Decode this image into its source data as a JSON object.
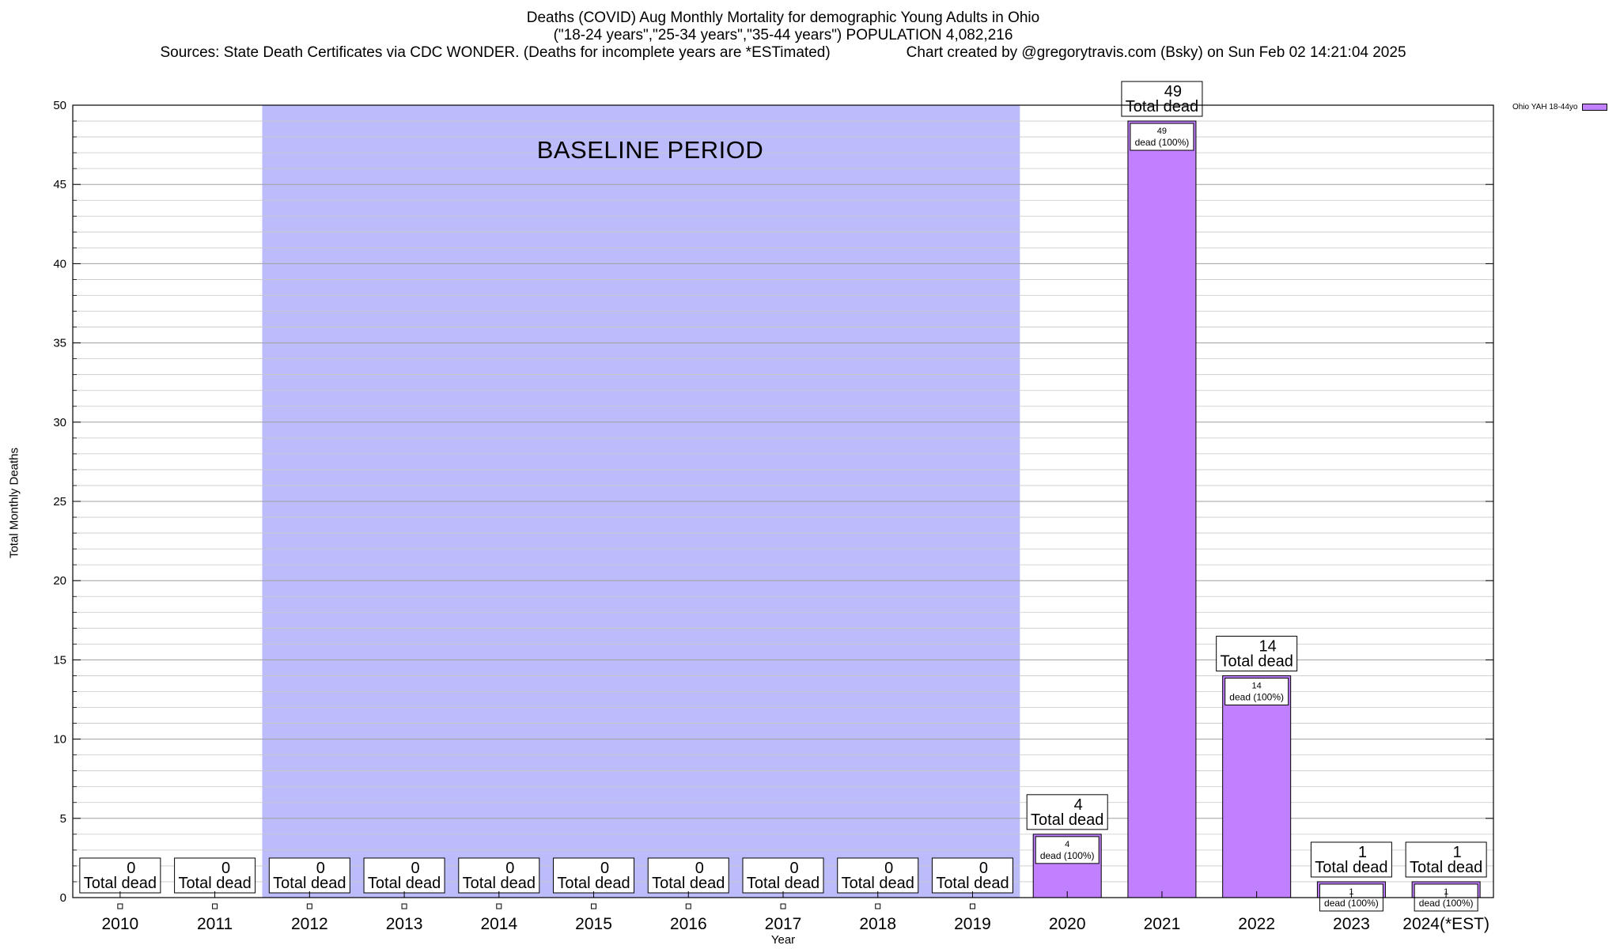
{
  "title": {
    "line1": "Deaths (COVID) Aug Monthly Mortality for demographic Young Adults in Ohio",
    "line2": "(\"18-24 years\",\"25-34 years\",\"35-44 years\") POPULATION 4,082,216",
    "line3_left": "Sources: State Death Certificates via CDC WONDER. (Deaths for incomplete years are *ESTimated)",
    "line3_right": "Chart created by @gregorytravis.com (Bsky) on Sun Feb 02 14:21:04 2025"
  },
  "chart_data": {
    "type": "bar",
    "categories": [
      "2010",
      "2011",
      "2012",
      "2013",
      "2014",
      "2015",
      "2016",
      "2017",
      "2018",
      "2019",
      "2020",
      "2021",
      "2022",
      "2023",
      "2024(*EST)"
    ],
    "series": [
      {
        "name": "Ohio YAH 18-44yo",
        "values": [
          0,
          0,
          0,
          0,
          0,
          0,
          0,
          0,
          0,
          0,
          4,
          49,
          14,
          1,
          1
        ],
        "color": "#c080ff"
      }
    ],
    "total_label": "Total dead",
    "segment_label": "dead (100%)",
    "xlabel": "Year",
    "ylabel": "Total Monthly Deaths",
    "ylim": [
      0,
      50
    ],
    "yticks": [
      0,
      5,
      10,
      15,
      20,
      25,
      30,
      35,
      40,
      45,
      50
    ],
    "grid": true,
    "legend_position": "top-right",
    "baseline": {
      "label": "BASELINE PERIOD",
      "from": "2012",
      "to": "2019",
      "color": "#bcbcfa"
    }
  }
}
